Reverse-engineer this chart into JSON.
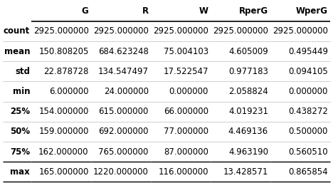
{
  "columns": [
    "G",
    "R",
    "W",
    "RperG",
    "WperG"
  ],
  "index": [
    "count",
    "mean",
    "std",
    "min",
    "25%",
    "50%",
    "75%",
    "max"
  ],
  "rows": [
    [
      "2925.000000",
      "2925.000000",
      "2925.000000",
      "2925.000000",
      "2925.000000"
    ],
    [
      "150.808205",
      "684.623248",
      "75.004103",
      "4.605009",
      "0.495449"
    ],
    [
      "22.878728",
      "134.547497",
      "17.522547",
      "0.977183",
      "0.094105"
    ],
    [
      "6.000000",
      "24.000000",
      "0.000000",
      "2.058824",
      "0.000000"
    ],
    [
      "154.000000",
      "615.000000",
      "66.000000",
      "4.019231",
      "0.438272"
    ],
    [
      "159.000000",
      "692.000000",
      "77.000000",
      "4.469136",
      "0.500000"
    ],
    [
      "162.000000",
      "765.000000",
      "87.000000",
      "4.963190",
      "0.560510"
    ],
    [
      "165.000000",
      "1220.000000",
      "116.000000",
      "13.428571",
      "0.865854"
    ]
  ],
  "background_color": "#ffffff",
  "header_line_color": "#000000",
  "row_line_color": "#bbbbbb",
  "text_color": "#000000",
  "fontsize": 8.5,
  "header_fontsize": 8.5,
  "fig_width": 4.68,
  "fig_height": 2.57,
  "dpi": 100
}
